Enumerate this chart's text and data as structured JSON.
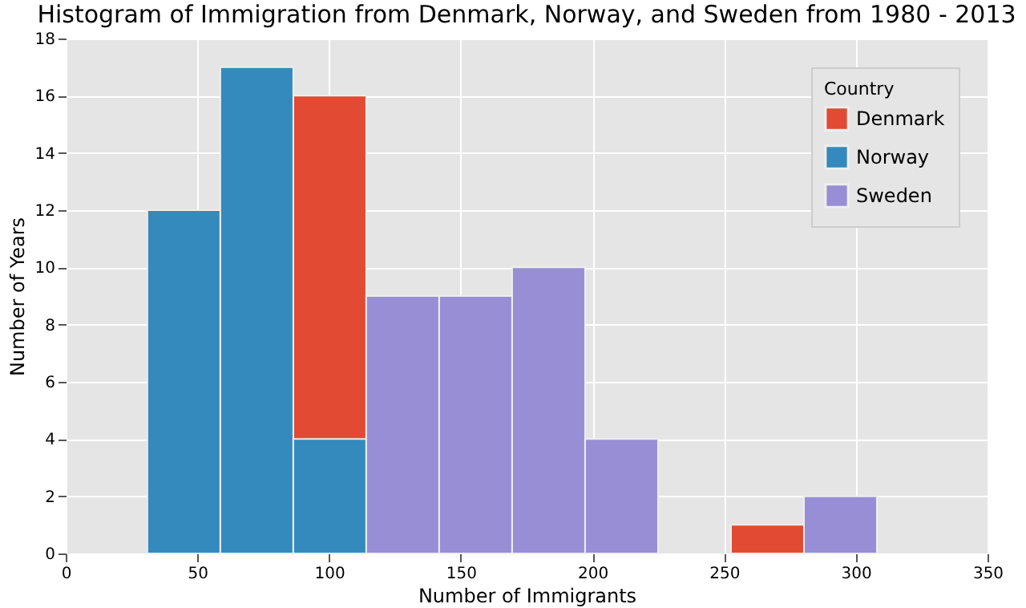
{
  "chart_data": {
    "type": "histogram",
    "title": "Histogram of Immigration from Denmark, Norway, and Sweden from 1980 - 2013",
    "xlabel": "Number of Immigrants",
    "ylabel": "Number of Years",
    "legend_title": "Country",
    "bins": [
      31,
      58.7,
      86.4,
      114.1,
      141.8,
      169.5,
      197.2,
      224.9,
      252.6,
      280.3,
      308
    ],
    "series": [
      {
        "name": "Denmark",
        "color": "#e24a33",
        "values": [
          null,
          null,
          16,
          null,
          null,
          null,
          null,
          null,
          1,
          null
        ]
      },
      {
        "name": "Norway",
        "color": "#348abd",
        "values": [
          12,
          17,
          4,
          null,
          null,
          null,
          null,
          null,
          null,
          null
        ]
      },
      {
        "name": "Sweden",
        "color": "#988ed5",
        "values": [
          null,
          null,
          null,
          9,
          9,
          10,
          4,
          null,
          null,
          2
        ]
      }
    ],
    "xlim": [
      0,
      350
    ],
    "xticks": [
      0,
      50,
      100,
      150,
      200,
      250,
      300,
      350
    ],
    "ylim": [
      0,
      18
    ],
    "yticks": [
      0,
      2,
      4,
      6,
      8,
      10,
      12,
      14,
      16,
      18
    ],
    "grid": true,
    "legend": "top right"
  }
}
